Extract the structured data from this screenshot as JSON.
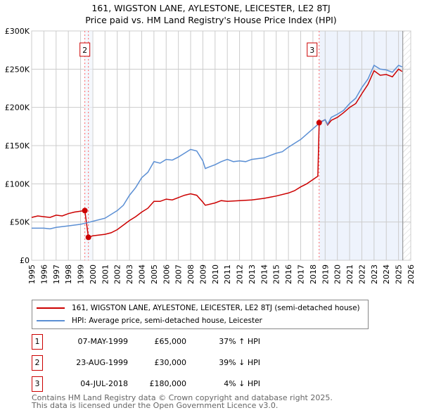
{
  "title_line1": "161, WIGSTON LANE, AYLESTONE, LEICESTER, LE2 8TJ",
  "title_line2": "Price paid vs. HM Land Registry's House Price Index (HPI)",
  "legend": {
    "property": "161, WIGSTON LANE, AYLESTONE, LEICESTER, LE2 8TJ (semi-detached house)",
    "hpi": "HPI: Average price, semi-detached house, Leicester"
  },
  "sales": [
    {
      "num": "1",
      "date": "07-MAY-1999",
      "price": "£65,000",
      "hpi": "37% ↑ HPI"
    },
    {
      "num": "2",
      "date": "23-AUG-1999",
      "price": "£30,000",
      "hpi": "39% ↓ HPI"
    },
    {
      "num": "3",
      "date": "04-JUL-2018",
      "price": "£180,000",
      "hpi": "4% ↓ HPI"
    }
  ],
  "footer": {
    "line1": "Contains HM Land Registry data © Crown copyright and database right 2025.",
    "line2": "This data is licensed under the Open Government Licence v3.0."
  },
  "chart_data": {
    "type": "line",
    "xlim": [
      1995,
      2026
    ],
    "ylim": [
      0,
      300000
    ],
    "yticks": [
      0,
      50000,
      100000,
      150000,
      200000,
      250000,
      300000
    ],
    "ytick_labels": [
      "£0",
      "£50K",
      "£100K",
      "£150K",
      "£200K",
      "£250K",
      "£300K"
    ],
    "xticks": [
      "1995",
      "1996",
      "1997",
      "1998",
      "1999",
      "2000",
      "2001",
      "2002",
      "2003",
      "2004",
      "2005",
      "2006",
      "2007",
      "2008",
      "2009",
      "2010",
      "2011",
      "2012",
      "2013",
      "2014",
      "2015",
      "2016",
      "2017",
      "2018",
      "2019",
      "2020",
      "2021",
      "2022",
      "2023",
      "2024",
      "2025",
      "2026"
    ],
    "grid": true,
    "colors": {
      "property": "#cc0000",
      "hpi": "#5b8fd4",
      "shade": "#eef3fc"
    },
    "shaded_from": 2018.51,
    "data_end": 2025.35,
    "sale_points": [
      {
        "label": "1",
        "x": 1999.35,
        "y": 65000,
        "show_box": false
      },
      {
        "label": "2",
        "x": 1999.64,
        "y": 30000,
        "show_box": true
      },
      {
        "label": "3",
        "x": 2018.51,
        "y": 180000,
        "show_box": true
      }
    ],
    "series": [
      {
        "name": "property",
        "points": [
          [
            1995,
            56000
          ],
          [
            1995.5,
            58000
          ],
          [
            1996,
            57000
          ],
          [
            1996.5,
            56000
          ],
          [
            1997,
            59000
          ],
          [
            1997.5,
            58000
          ],
          [
            1998,
            61000
          ],
          [
            1998.5,
            63000
          ],
          [
            1999.35,
            65000
          ],
          [
            1999.64,
            30000
          ],
          [
            2000,
            32000
          ],
          [
            2001,
            34000
          ],
          [
            2001.5,
            36000
          ],
          [
            2002,
            40000
          ],
          [
            2002.5,
            46000
          ],
          [
            2003,
            52000
          ],
          [
            2003.5,
            57000
          ],
          [
            2004,
            63000
          ],
          [
            2004.5,
            68000
          ],
          [
            2005,
            77000
          ],
          [
            2005.5,
            77000
          ],
          [
            2006,
            80000
          ],
          [
            2006.5,
            79000
          ],
          [
            2007,
            82000
          ],
          [
            2007.5,
            85000
          ],
          [
            2008,
            87000
          ],
          [
            2008.5,
            85000
          ],
          [
            2009,
            76000
          ],
          [
            2009.2,
            72000
          ],
          [
            2010,
            75000
          ],
          [
            2010.5,
            78000
          ],
          [
            2011,
            77000
          ],
          [
            2012,
            78000
          ],
          [
            2013,
            79000
          ],
          [
            2014,
            81000
          ],
          [
            2015,
            84000
          ],
          [
            2016,
            88000
          ],
          [
            2016.5,
            91000
          ],
          [
            2017,
            96000
          ],
          [
            2017.5,
            100000
          ],
          [
            2018.4,
            110000
          ],
          [
            2018.51,
            180000
          ],
          [
            2019,
            184000
          ],
          [
            2019.2,
            177000
          ],
          [
            2019.5,
            183000
          ],
          [
            2020,
            187000
          ],
          [
            2020.5,
            193000
          ],
          [
            2021,
            200000
          ],
          [
            2021.5,
            205000
          ],
          [
            2022,
            218000
          ],
          [
            2022.5,
            230000
          ],
          [
            2023,
            248000
          ],
          [
            2023.5,
            242000
          ],
          [
            2024,
            243000
          ],
          [
            2024.5,
            240000
          ],
          [
            2025,
            250000
          ],
          [
            2025.3,
            247000
          ]
        ]
      },
      {
        "name": "hpi",
        "points": [
          [
            1995,
            42000
          ],
          [
            1996,
            42000
          ],
          [
            1996.5,
            41000
          ],
          [
            1997,
            43000
          ],
          [
            1998,
            45000
          ],
          [
            1999,
            47000
          ],
          [
            1999.5,
            49000
          ],
          [
            2000,
            51000
          ],
          [
            2001,
            55000
          ],
          [
            2002,
            65000
          ],
          [
            2002.5,
            72000
          ],
          [
            2003,
            85000
          ],
          [
            2003.5,
            95000
          ],
          [
            2004,
            108000
          ],
          [
            2004.5,
            115000
          ],
          [
            2005,
            129000
          ],
          [
            2005.5,
            127000
          ],
          [
            2006,
            132000
          ],
          [
            2006.5,
            131000
          ],
          [
            2007,
            135000
          ],
          [
            2007.5,
            140000
          ],
          [
            2008,
            145000
          ],
          [
            2008.5,
            143000
          ],
          [
            2009,
            130000
          ],
          [
            2009.2,
            120000
          ],
          [
            2009.5,
            122000
          ],
          [
            2010,
            125000
          ],
          [
            2010.5,
            129000
          ],
          [
            2011,
            132000
          ],
          [
            2011.5,
            129000
          ],
          [
            2012,
            130000
          ],
          [
            2012.5,
            129000
          ],
          [
            2013,
            132000
          ],
          [
            2013.5,
            133000
          ],
          [
            2014,
            134000
          ],
          [
            2014.5,
            137000
          ],
          [
            2015,
            140000
          ],
          [
            2015.5,
            142000
          ],
          [
            2016,
            148000
          ],
          [
            2016.5,
            153000
          ],
          [
            2017,
            158000
          ],
          [
            2017.5,
            165000
          ],
          [
            2018,
            172000
          ],
          [
            2018.5,
            179000
          ],
          [
            2019,
            184000
          ],
          [
            2019.2,
            178000
          ],
          [
            2019.5,
            187000
          ],
          [
            2020,
            191000
          ],
          [
            2020.5,
            196000
          ],
          [
            2021,
            205000
          ],
          [
            2021.5,
            212000
          ],
          [
            2022,
            226000
          ],
          [
            2022.5,
            237000
          ],
          [
            2023,
            255000
          ],
          [
            2023.5,
            250000
          ],
          [
            2024,
            249000
          ],
          [
            2024.5,
            246000
          ],
          [
            2025,
            255000
          ],
          [
            2025.3,
            253000
          ]
        ]
      }
    ]
  }
}
